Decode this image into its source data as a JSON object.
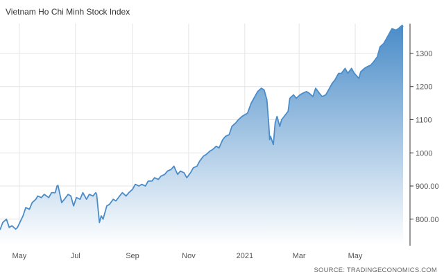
{
  "title": "Vietnam Ho Chi Minh Stock Index",
  "source": "SOURCE: TRADINGECONOMICS.COM",
  "chart_data": {
    "type": "area",
    "title": "Vietnam Ho Chi Minh Stock Index",
    "xlabel": "",
    "ylabel": "",
    "ylim": [
      720,
      1390
    ],
    "xlim": [
      "2020-04-10",
      "2021-06-22"
    ],
    "x_ticks": [
      {
        "label": "May",
        "date": "2020-05-01"
      },
      {
        "label": "Jul",
        "date": "2020-07-01"
      },
      {
        "label": "Sep",
        "date": "2020-09-01"
      },
      {
        "label": "Nov",
        "date": "2020-11-01"
      },
      {
        "label": "2021",
        "date": "2021-01-01"
      },
      {
        "label": "Mar",
        "date": "2021-03-01"
      },
      {
        "label": "May",
        "date": "2021-05-01"
      }
    ],
    "y_ticks": [
      {
        "label": "800.00",
        "value": 800
      },
      {
        "label": "900.00",
        "value": 900
      },
      {
        "label": "1000",
        "value": 1000
      },
      {
        "label": "1100",
        "value": 1100
      },
      {
        "label": "1200",
        "value": 1200
      },
      {
        "label": "1300",
        "value": 1300
      }
    ],
    "grid": true,
    "line_color": "#4a8cc8",
    "fill_top_color": "#4a8cc8",
    "fill_bottom_color": "#ffffff",
    "series": [
      {
        "x": [
          "2020-04-10",
          "2020-04-13",
          "2020-04-17",
          "2020-04-20",
          "2020-04-23",
          "2020-04-27",
          "2020-04-29",
          "2020-05-05",
          "2020-05-08",
          "2020-05-12",
          "2020-05-15",
          "2020-05-19",
          "2020-05-21",
          "2020-05-25",
          "2020-05-28",
          "2020-06-02",
          "2020-06-05",
          "2020-06-09",
          "2020-06-11",
          "2020-06-12",
          "2020-06-16",
          "2020-06-19",
          "2020-06-23",
          "2020-06-26",
          "2020-06-29",
          "2020-07-02",
          "2020-07-06",
          "2020-07-09",
          "2020-07-13",
          "2020-07-16",
          "2020-07-20",
          "2020-07-23",
          "2020-07-24",
          "2020-07-27",
          "2020-07-29",
          "2020-07-31",
          "2020-08-04",
          "2020-08-07",
          "2020-08-11",
          "2020-08-14",
          "2020-08-18",
          "2020-08-21",
          "2020-08-25",
          "2020-08-28",
          "2020-09-01",
          "2020-09-04",
          "2020-09-08",
          "2020-09-11",
          "2020-09-15",
          "2020-09-18",
          "2020-09-22",
          "2020-09-25",
          "2020-09-29",
          "2020-10-02",
          "2020-10-06",
          "2020-10-09",
          "2020-10-13",
          "2020-10-16",
          "2020-10-20",
          "2020-10-23",
          "2020-10-27",
          "2020-10-30",
          "2020-11-03",
          "2020-11-06",
          "2020-11-10",
          "2020-11-13",
          "2020-11-17",
          "2020-11-20",
          "2020-11-24",
          "2020-11-27",
          "2020-12-01",
          "2020-12-04",
          "2020-12-08",
          "2020-12-11",
          "2020-12-15",
          "2020-12-18",
          "2020-12-22",
          "2020-12-25",
          "2020-12-29",
          "2021-01-04",
          "2021-01-08",
          "2021-01-12",
          "2021-01-15",
          "2021-01-19",
          "2021-01-22",
          "2021-01-25",
          "2021-01-27",
          "2021-01-28",
          "2021-01-29",
          "2021-02-01",
          "2021-02-03",
          "2021-02-05",
          "2021-02-08",
          "2021-02-10",
          "2021-02-17",
          "2021-02-19",
          "2021-02-23",
          "2021-02-26",
          "2021-03-02",
          "2021-03-05",
          "2021-03-09",
          "2021-03-12",
          "2021-03-16",
          "2021-03-19",
          "2021-03-23",
          "2021-03-26",
          "2021-03-30",
          "2021-04-02",
          "2021-04-06",
          "2021-04-09",
          "2021-04-13",
          "2021-04-16",
          "2021-04-20",
          "2021-04-23",
          "2021-04-27",
          "2021-04-30",
          "2021-05-05",
          "2021-05-07",
          "2021-05-11",
          "2021-05-14",
          "2021-05-18",
          "2021-05-21",
          "2021-05-25",
          "2021-05-28",
          "2021-06-01",
          "2021-06-04",
          "2021-06-07",
          "2021-06-10",
          "2021-06-14",
          "2021-06-17",
          "2021-06-21",
          "2021-06-22"
        ],
        "values": [
          768,
          790,
          800,
          775,
          780,
          770,
          775,
          810,
          835,
          830,
          850,
          860,
          870,
          865,
          875,
          865,
          880,
          880,
          900,
          902,
          850,
          860,
          875,
          870,
          840,
          865,
          860,
          880,
          860,
          875,
          870,
          880,
          875,
          790,
          810,
          800,
          840,
          845,
          860,
          855,
          870,
          880,
          870,
          880,
          890,
          905,
          900,
          905,
          900,
          915,
          915,
          925,
          920,
          930,
          935,
          945,
          950,
          960,
          935,
          945,
          940,
          925,
          940,
          955,
          960,
          975,
          990,
          995,
          1005,
          1010,
          1020,
          1015,
          1040,
          1050,
          1055,
          1080,
          1090,
          1100,
          1110,
          1120,
          1150,
          1170,
          1185,
          1195,
          1190,
          1160,
          1090,
          1040,
          1050,
          1025,
          1090,
          1110,
          1080,
          1100,
          1125,
          1165,
          1175,
          1165,
          1175,
          1180,
          1185,
          1180,
          1170,
          1195,
          1180,
          1170,
          1175,
          1190,
          1210,
          1220,
          1240,
          1240,
          1255,
          1240,
          1255,
          1240,
          1225,
          1245,
          1255,
          1260,
          1265,
          1275,
          1290,
          1320,
          1330,
          1345,
          1360,
          1375,
          1370,
          1375,
          1385,
          1380
        ]
      }
    ]
  }
}
